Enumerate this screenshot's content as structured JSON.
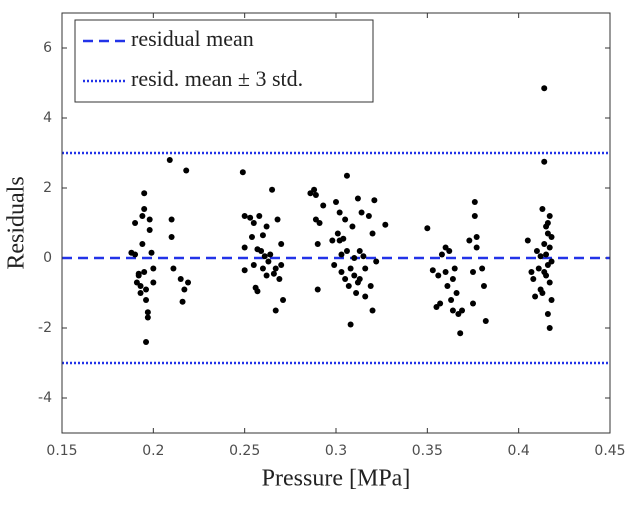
{
  "chart_data": {
    "type": "scatter",
    "xlabel": "Pressure [MPa]",
    "ylabel": "Residuals",
    "xlim": [
      0.15,
      0.45
    ],
    "xticks": [
      0.15,
      0.2,
      0.25,
      0.3,
      0.35,
      0.4,
      0.45
    ],
    "ylim": [
      -5,
      7
    ],
    "yticks": [
      -4,
      -2,
      0,
      2,
      4,
      6
    ],
    "grid": false,
    "legend": "upper left",
    "point_color": "#000000",
    "x": [
      0.19,
      0.19,
      0.191,
      0.192,
      0.193,
      0.194,
      0.195,
      0.195,
      0.194,
      0.195,
      0.196,
      0.196,
      0.197,
      0.197,
      0.196,
      0.198,
      0.198,
      0.199,
      0.2,
      0.2,
      0.193,
      0.209,
      0.21,
      0.21,
      0.211,
      0.215,
      0.216,
      0.217,
      0.218,
      0.219,
      0.188,
      0.192,
      0.249,
      0.25,
      0.25,
      0.25,
      0.253,
      0.254,
      0.255,
      0.255,
      0.256,
      0.257,
      0.258,
      0.259,
      0.26,
      0.26,
      0.262,
      0.262,
      0.264,
      0.265,
      0.266,
      0.267,
      0.267,
      0.268,
      0.269,
      0.27,
      0.27,
      0.271,
      0.261,
      0.257,
      0.263,
      0.286,
      0.288,
      0.289,
      0.289,
      0.29,
      0.29,
      0.291,
      0.293,
      0.298,
      0.299,
      0.3,
      0.301,
      0.302,
      0.302,
      0.303,
      0.304,
      0.305,
      0.305,
      0.306,
      0.306,
      0.307,
      0.308,
      0.308,
      0.309,
      0.31,
      0.31,
      0.311,
      0.312,
      0.313,
      0.313,
      0.314,
      0.315,
      0.316,
      0.316,
      0.318,
      0.319,
      0.32,
      0.32,
      0.321,
      0.322,
      0.327,
      0.303,
      0.312,
      0.35,
      0.353,
      0.355,
      0.356,
      0.357,
      0.358,
      0.36,
      0.36,
      0.361,
      0.362,
      0.363,
      0.364,
      0.364,
      0.365,
      0.366,
      0.367,
      0.368,
      0.369,
      0.373,
      0.375,
      0.375,
      0.376,
      0.376,
      0.377,
      0.377,
      0.38,
      0.381,
      0.382,
      0.405,
      0.407,
      0.408,
      0.409,
      0.41,
      0.411,
      0.412,
      0.413,
      0.413,
      0.414,
      0.414,
      0.414,
      0.415,
      0.415,
      0.415,
      0.416,
      0.416,
      0.416,
      0.416,
      0.417,
      0.417,
      0.417,
      0.417,
      0.418,
      0.418,
      0.418,
      0.412,
      0.414
    ],
    "y": [
      1.0,
      0.1,
      -0.7,
      -0.5,
      -0.8,
      1.2,
      1.85,
      1.4,
      0.4,
      -0.4,
      -0.9,
      -1.2,
      -1.55,
      -1.7,
      -2.4,
      1.1,
      0.8,
      0.15,
      -0.3,
      -0.7,
      -1.0,
      2.8,
      1.1,
      0.6,
      -0.3,
      -0.6,
      -1.25,
      -0.9,
      2.5,
      -0.7,
      0.15,
      -0.45,
      2.45,
      1.2,
      0.3,
      -0.35,
      1.15,
      0.6,
      1.0,
      -0.2,
      -0.85,
      -0.95,
      1.2,
      0.2,
      0.65,
      -0.3,
      0.9,
      -0.5,
      0.1,
      1.95,
      -0.45,
      -0.3,
      -1.5,
      1.1,
      -0.6,
      0.4,
      -0.2,
      -1.2,
      0.05,
      0.25,
      -0.1,
      1.85,
      1.95,
      1.1,
      1.8,
      0.4,
      -0.9,
      1.0,
      1.5,
      0.5,
      -0.2,
      1.6,
      0.7,
      1.3,
      0.5,
      -0.4,
      0.55,
      1.1,
      -0.6,
      2.35,
      0.2,
      -0.8,
      -0.3,
      -1.9,
      0.9,
      0.0,
      -0.5,
      -1.0,
      1.7,
      0.2,
      -0.6,
      1.3,
      0.05,
      -0.3,
      -1.1,
      1.2,
      -0.8,
      0.7,
      -1.5,
      1.65,
      -0.1,
      0.95,
      0.1,
      -0.7,
      0.85,
      -0.35,
      -1.4,
      -0.5,
      -1.3,
      0.1,
      0.3,
      -0.4,
      -0.8,
      0.2,
      -1.2,
      -0.6,
      -1.5,
      -0.3,
      -1.0,
      -1.6,
      -2.15,
      -1.5,
      0.5,
      -0.4,
      -1.3,
      1.6,
      1.2,
      0.6,
      0.3,
      -0.3,
      -0.8,
      -1.8,
      0.5,
      -0.4,
      -0.6,
      -1.1,
      0.2,
      -0.3,
      -0.9,
      1.4,
      -1.0,
      4.85,
      2.75,
      0.4,
      0.9,
      0.1,
      -0.5,
      1.0,
      0.7,
      -0.2,
      -1.6,
      1.2,
      0.3,
      -0.7,
      -2.0,
      0.6,
      -0.1,
      -1.2,
      0.05,
      -0.4
    ],
    "reference_lines": [
      {
        "name": "residual mean",
        "color": "#2233e8",
        "style": "dashed",
        "values": [
          0
        ]
      },
      {
        "name": "resid. mean ± 3 std.",
        "color": "#2233e8",
        "style": "dotted",
        "values": [
          3,
          -3
        ]
      }
    ]
  }
}
